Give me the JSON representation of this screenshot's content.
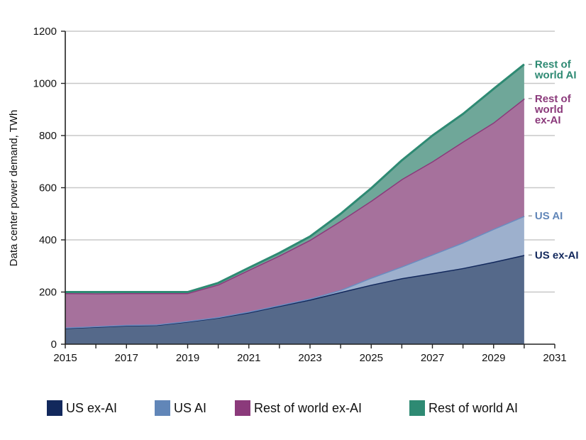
{
  "chart_data": {
    "type": "area",
    "stacked": true,
    "title": "",
    "xlabel": "",
    "ylabel": "Data center power demand, TWh",
    "xlim": [
      2015,
      2031
    ],
    "ylim": [
      0,
      1200
    ],
    "x_ticks": [
      "2015",
      "2017",
      "2019",
      "2021",
      "2023",
      "2025",
      "2027",
      "2029",
      "2031"
    ],
    "y_ticks": [
      "0",
      "200",
      "400",
      "600",
      "800",
      "1000",
      "1200"
    ],
    "grid": true,
    "legend_position": "bottom",
    "x": [
      2015,
      2016,
      2017,
      2018,
      2019,
      2020,
      2021,
      2022,
      2023,
      2024,
      2025,
      2026,
      2027,
      2028,
      2029,
      2030
    ],
    "series": [
      {
        "name": "US ex-AI",
        "color": "#55698a",
        "line_color": "#12285c",
        "legend_color": "#12285c",
        "end_label": "US ex-AI",
        "values": [
          62,
          67,
          72,
          74,
          87,
          102,
          122,
          147,
          171,
          200,
          228,
          253,
          272,
          292,
          316,
          342
        ]
      },
      {
        "name": "US AI",
        "color": "#9db0cd",
        "line_color": "#6b8cc0",
        "legend_color": "#6186b8",
        "end_label": "US AI",
        "values": [
          2,
          2,
          2,
          2,
          2,
          2,
          3,
          3,
          4,
          8,
          27,
          45,
          72,
          98,
          126,
          150
        ]
      },
      {
        "name": "Rest of world ex-AI",
        "color": "#a6719c",
        "line_color": "#8b3a7b",
        "legend_color": "#8b3a7b",
        "end_label": "Rest of world ex-AI",
        "values": [
          132,
          126,
          122,
          120,
          107,
          125,
          160,
          190,
          225,
          265,
          295,
          335,
          357,
          387,
          408,
          450
        ]
      },
      {
        "name": "Rest of world AI",
        "color": "#6fa799",
        "line_color": "#2e8a73",
        "legend_color": "#2e8a73",
        "end_label": "Rest of world AI",
        "values": [
          4,
          5,
          4,
          4,
          4,
          6,
          8,
          10,
          13,
          27,
          48,
          72,
          99,
          106,
          129,
          131
        ]
      }
    ],
    "end_labels": [
      {
        "series": "Rest of world AI",
        "lines": [
          "Rest of",
          "world AI"
        ],
        "color": "#2e8a73"
      },
      {
        "series": "Rest of world ex-AI",
        "lines": [
          "Rest of",
          "world",
          "ex-AI"
        ],
        "color": "#8b3a7b"
      },
      {
        "series": "US AI",
        "lines": [
          "US AI"
        ],
        "color": "#6186b8"
      },
      {
        "series": "US ex-AI",
        "lines": [
          "US ex-AI"
        ],
        "color": "#12285c"
      }
    ]
  }
}
